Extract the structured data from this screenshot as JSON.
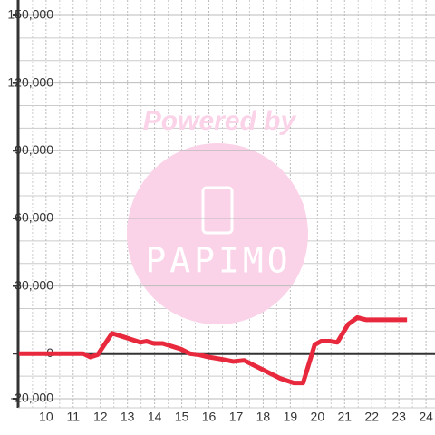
{
  "chart_data": {
    "type": "line",
    "annotations": [
      "Powered by",
      "PAPIMO"
    ],
    "x": [
      9,
      11.37,
      11.63,
      11.9,
      12.43,
      12.97,
      13.47,
      13.7,
      13.97,
      14.3,
      14.97,
      15.3,
      15.63,
      15.97,
      16.47,
      16.9,
      17.3,
      17.63,
      18.13,
      18.63,
      19.13,
      19.47,
      19.9,
      20.13,
      20.47,
      20.73,
      21.13,
      21.47,
      21.8,
      23.3
    ],
    "series": [
      {
        "color": "#e8283c",
        "values": [
          0,
          0,
          -1500,
          -500,
          9000,
          7000,
          5000,
          5500,
          4500,
          4500,
          2000,
          0,
          -500,
          -1500,
          -2500,
          -3500,
          -3000,
          -5000,
          -8000,
          -11000,
          -13000,
          -13000,
          4000,
          5500,
          5500,
          5000,
          13000,
          16000,
          15000,
          15000
        ]
      }
    ],
    "xlim": [
      8.97,
      24.33
    ],
    "xticks": [
      10,
      11,
      12,
      13,
      14,
      15,
      16,
      17,
      18,
      19,
      20,
      21,
      22,
      23,
      24
    ],
    "x_minor_ticks": [
      9.5,
      10.5,
      11.5,
      12.5,
      13.5,
      14.5,
      15.5,
      16.5,
      17.5,
      18.5,
      19.5,
      20.5,
      21.5,
      22.5,
      23.5
    ],
    "ylim": [
      -20000,
      150000
    ],
    "yticks": [
      {
        "value": -20000,
        "label": "-20,000"
      },
      {
        "value": 0,
        "label": "0"
      },
      {
        "value": 30000,
        "label": "30,000"
      },
      {
        "value": 60000,
        "label": "60,000"
      },
      {
        "value": 90000,
        "label": "90,000"
      },
      {
        "value": 120000,
        "label": "120,000"
      },
      {
        "value": 150000,
        "label": "150,000"
      }
    ],
    "y_minor_ticks": [
      -10000,
      10000,
      20000,
      40000,
      50000,
      70000,
      80000,
      100000,
      110000,
      130000,
      140000
    ],
    "grid": true
  }
}
